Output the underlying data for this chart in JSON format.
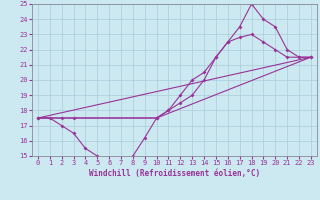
{
  "xlabel": "Windchill (Refroidissement éolien,°C)",
  "bg_color": "#cce8f0",
  "grid_color": "#aaccdd",
  "line_color": "#993399",
  "xlim": [
    -0.5,
    23.5
  ],
  "ylim": [
    15,
    25
  ],
  "xticks": [
    0,
    1,
    2,
    3,
    4,
    5,
    6,
    7,
    8,
    9,
    10,
    11,
    12,
    13,
    14,
    15,
    16,
    17,
    18,
    19,
    20,
    21,
    22,
    23
  ],
  "yticks": [
    15,
    16,
    17,
    18,
    19,
    20,
    21,
    22,
    23,
    24,
    25
  ],
  "series1_x": [
    0,
    1,
    2,
    3,
    4,
    5,
    6,
    7,
    8,
    9,
    10,
    11,
    12,
    13,
    14,
    15,
    16,
    17,
    18,
    19,
    20,
    21,
    22,
    23
  ],
  "series1_y": [
    17.5,
    17.5,
    17.0,
    16.5,
    15.5,
    15.0,
    14.8,
    14.6,
    15.0,
    16.2,
    17.5,
    18.0,
    19.0,
    20.0,
    20.5,
    21.5,
    22.5,
    22.8,
    23.0,
    22.5,
    22.0,
    21.5,
    21.5,
    21.5
  ],
  "series2_x": [
    0,
    2,
    3,
    10,
    11,
    12,
    13,
    14,
    15,
    16,
    17,
    18,
    19,
    20,
    21,
    22,
    23
  ],
  "series2_y": [
    17.5,
    17.5,
    17.5,
    17.5,
    18.0,
    18.5,
    19.0,
    20.0,
    21.5,
    22.5,
    23.5,
    25.0,
    24.0,
    23.5,
    22.0,
    21.5,
    21.5
  ],
  "series3_x": [
    0,
    23
  ],
  "series3_y": [
    17.5,
    21.5
  ],
  "series4_x": [
    0,
    10,
    23
  ],
  "series4_y": [
    17.5,
    17.5,
    21.5
  ],
  "tick_fontsize": 5,
  "xlabel_fontsize": 5.5
}
